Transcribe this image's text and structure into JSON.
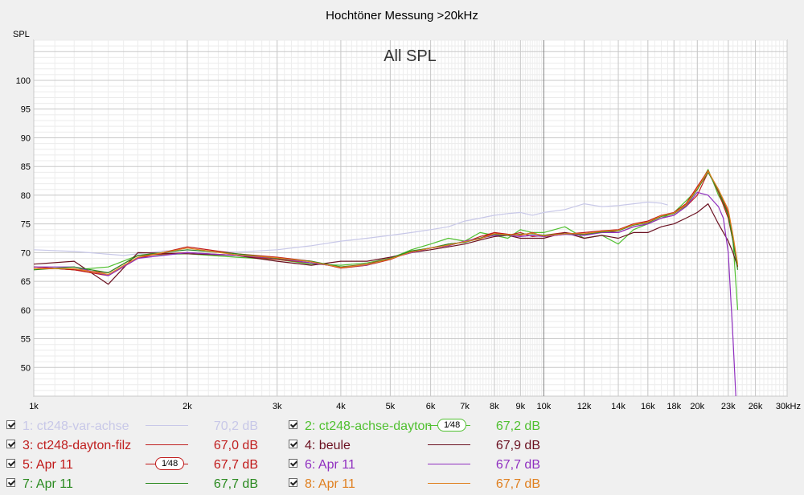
{
  "chart_data": {
    "type": "line",
    "title": "Hochtöner Messung >20kHz",
    "overlay_label": "All SPL",
    "ylabel": "SPL",
    "xlabel": "",
    "x_scale": "log",
    "xlim": [
      1000,
      30000
    ],
    "ylim": [
      45,
      107
    ],
    "y_ticks": [
      50,
      55,
      60,
      65,
      70,
      75,
      80,
      85,
      90,
      95,
      100
    ],
    "x_ticks": [
      {
        "v": 1000,
        "label": "1k"
      },
      {
        "v": 2000,
        "label": "2k"
      },
      {
        "v": 3000,
        "label": "3k"
      },
      {
        "v": 4000,
        "label": "4k"
      },
      {
        "v": 5000,
        "label": "5k"
      },
      {
        "v": 6000,
        "label": "6k"
      },
      {
        "v": 7000,
        "label": "7k"
      },
      {
        "v": 8000,
        "label": "8k"
      },
      {
        "v": 9000,
        "label": "9k"
      },
      {
        "v": 10000,
        "label": "10k"
      },
      {
        "v": 12000,
        "label": "12k"
      },
      {
        "v": 14000,
        "label": "14k"
      },
      {
        "v": 16000,
        "label": "16k"
      },
      {
        "v": 18000,
        "label": "18k"
      },
      {
        "v": 20000,
        "label": "20k"
      },
      {
        "v": 23000,
        "label": "23k"
      },
      {
        "v": 26000,
        "label": "26k"
      },
      {
        "v": 30000,
        "label": "30kHz"
      }
    ],
    "series": [
      {
        "name": "1: ct248-var-achse",
        "color": "#c8c8e8",
        "value_label": "70,2 dB",
        "faded": true,
        "x": [
          1000,
          1200,
          1500,
          1800,
          2000,
          2500,
          3000,
          3500,
          4000,
          4500,
          5000,
          5500,
          6000,
          6500,
          7000,
          7500,
          8000,
          8500,
          9000,
          9500,
          10000,
          11000,
          12000,
          13000,
          14000,
          15000,
          16000,
          17000,
          17500
        ],
        "y": [
          70.5,
          70.2,
          69.5,
          70.3,
          70.4,
          70.1,
          70.5,
          71.2,
          72.0,
          72.5,
          73.0,
          73.5,
          74.0,
          74.5,
          75.5,
          76.0,
          76.5,
          76.8,
          77.0,
          76.5,
          77.0,
          77.5,
          78.5,
          78.0,
          78.2,
          78.5,
          78.8,
          78.6,
          78.3
        ]
      },
      {
        "name": "2: ct248-achse-dayton",
        "color": "#50c030",
        "value_label": "67,2 dB",
        "badge": "1⁄48",
        "x": [
          1000,
          1200,
          1400,
          1600,
          2000,
          2500,
          3000,
          3500,
          4000,
          4500,
          5000,
          5500,
          6000,
          6500,
          7000,
          7500,
          8000,
          8500,
          9000,
          9500,
          10000,
          11000,
          12000,
          13000,
          14000,
          15000,
          16000,
          17000,
          18000,
          19000,
          20000,
          21000,
          22000,
          23000,
          23500,
          24000
        ],
        "y": [
          67.5,
          67.0,
          67.5,
          69.5,
          69.8,
          69.2,
          68.8,
          68.0,
          67.8,
          68.2,
          69.0,
          70.5,
          71.5,
          72.5,
          72.0,
          73.5,
          73.0,
          72.5,
          74.0,
          73.5,
          73.5,
          74.5,
          72.5,
          73.0,
          71.5,
          74.0,
          75.0,
          76.0,
          77.0,
          79.0,
          81.0,
          84.5,
          80.0,
          77.0,
          72.0,
          60.0
        ]
      },
      {
        "name": "3: ct248-dayton-filz",
        "color": "#c02020",
        "value_label": "67,0 dB",
        "x": [
          1000,
          1200,
          1400,
          1600,
          2000,
          2500,
          3000,
          3500,
          4000,
          4500,
          5000,
          5500,
          6000,
          6500,
          7000,
          7500,
          8000,
          8500,
          9000,
          9500,
          10000,
          11000,
          12000,
          13000,
          14000,
          15000,
          16000,
          17000,
          18000,
          19000,
          20000,
          21000,
          22000,
          23000,
          23500,
          24000
        ],
        "y": [
          67.5,
          67.0,
          66.5,
          69.5,
          70.0,
          69.5,
          68.8,
          68.2,
          67.5,
          68.0,
          69.0,
          70.0,
          70.8,
          71.5,
          71.8,
          72.8,
          73.5,
          73.0,
          73.5,
          72.8,
          73.0,
          73.5,
          73.0,
          73.8,
          73.5,
          74.5,
          75.0,
          76.0,
          76.5,
          78.0,
          80.0,
          84.0,
          81.0,
          77.0,
          72.0,
          67.5
        ]
      },
      {
        "name": "4: beule",
        "color": "#6a1020",
        "value_label": "67,9 dB",
        "x": [
          1000,
          1200,
          1400,
          1600,
          2000,
          2500,
          3000,
          3500,
          4000,
          4500,
          5000,
          5500,
          6000,
          6500,
          7000,
          7500,
          8000,
          8500,
          9000,
          9500,
          10000,
          11000,
          12000,
          13000,
          14000,
          15000,
          16000,
          17000,
          18000,
          19000,
          20000,
          21000,
          22000,
          23000,
          23500,
          24000
        ],
        "y": [
          68.0,
          68.5,
          64.5,
          70.0,
          69.8,
          69.5,
          68.5,
          67.8,
          68.5,
          68.5,
          69.2,
          70.0,
          70.5,
          71.0,
          71.5,
          72.2,
          72.8,
          73.0,
          72.5,
          72.5,
          72.5,
          73.5,
          72.5,
          73.0,
          72.5,
          73.5,
          73.5,
          74.5,
          75.0,
          76.0,
          77.0,
          78.5,
          75.0,
          72.0,
          70.0,
          67.5
        ]
      },
      {
        "name": "5: Apr 11",
        "color": "#c01818",
        "value_label": "67,7 dB",
        "badge": "1⁄48",
        "x": [
          1000,
          1200,
          1400,
          1600,
          2000,
          2500,
          3000,
          3500,
          4000,
          4500,
          5000,
          5500,
          6000,
          6500,
          7000,
          7500,
          8000,
          8500,
          9000,
          9500,
          10000,
          11000,
          12000,
          13000,
          14000,
          15000,
          16000,
          17000,
          18000,
          19000,
          20000,
          21000,
          22000,
          23000,
          23500,
          24000
        ],
        "y": [
          67.5,
          67.0,
          66.0,
          69.0,
          71.0,
          69.8,
          69.2,
          68.5,
          67.3,
          67.8,
          68.8,
          70.2,
          70.8,
          71.2,
          72.0,
          72.5,
          73.5,
          73.2,
          73.0,
          73.5,
          72.8,
          73.2,
          73.5,
          73.8,
          74.0,
          75.0,
          75.5,
          76.5,
          77.0,
          78.5,
          81.5,
          84.3,
          80.5,
          76.0,
          72.0,
          67.5
        ]
      },
      {
        "name": "6: Apr 11",
        "color": "#9030c0",
        "value_label": "67,7 dB",
        "x": [
          1000,
          1200,
          1400,
          1600,
          2000,
          2500,
          3000,
          3500,
          4000,
          4500,
          5000,
          5500,
          6000,
          6500,
          7000,
          7500,
          8000,
          8500,
          9000,
          9500,
          10000,
          11000,
          12000,
          13000,
          14000,
          15000,
          16000,
          17000,
          18000,
          19000,
          20000,
          21000,
          22000,
          22500,
          23000,
          23500,
          23800
        ],
        "y": [
          67.5,
          67.5,
          66.0,
          69.0,
          70.0,
          69.5,
          69.0,
          68.2,
          67.5,
          67.8,
          69.0,
          70.0,
          70.8,
          71.2,
          72.0,
          72.5,
          73.0,
          73.0,
          72.8,
          73.0,
          72.8,
          73.2,
          73.0,
          73.5,
          73.5,
          74.5,
          75.0,
          76.0,
          76.5,
          78.0,
          80.5,
          80.0,
          78.0,
          76.0,
          70.0,
          55.0,
          45.0
        ]
      },
      {
        "name": "7: Apr 11",
        "color": "#2a8a20",
        "value_label": "67,7 dB",
        "x": [
          1000,
          1200,
          1400,
          1600,
          2000,
          2500,
          3000,
          3500,
          4000,
          4500,
          5000,
          5500,
          6000,
          6500,
          7000,
          7500,
          8000,
          8500,
          9000,
          9500,
          10000,
          11000,
          12000,
          13000,
          14000,
          15000,
          16000,
          17000,
          18000,
          19000,
          20000,
          21000,
          22000,
          23000,
          23500,
          24000
        ],
        "y": [
          67.0,
          67.5,
          66.5,
          69.5,
          70.5,
          69.8,
          69.0,
          68.5,
          67.5,
          67.9,
          69.0,
          70.3,
          70.8,
          71.5,
          71.8,
          72.5,
          73.2,
          73.0,
          73.2,
          73.3,
          73.0,
          73.3,
          73.2,
          73.6,
          73.8,
          74.8,
          75.2,
          76.3,
          76.8,
          78.2,
          81.0,
          84.0,
          80.8,
          76.5,
          72.0,
          67.0
        ]
      },
      {
        "name": "8: Apr 11",
        "color": "#e08020",
        "value_label": "67,7 dB",
        "x": [
          1000,
          1200,
          1400,
          1600,
          2000,
          2500,
          3000,
          3500,
          4000,
          4500,
          5000,
          5500,
          6000,
          6500,
          7000,
          7500,
          8000,
          8500,
          9000,
          9500,
          10000,
          11000,
          12000,
          13000,
          14000,
          15000,
          16000,
          17000,
          18000,
          19000,
          20000,
          21000,
          22000,
          23000,
          23500,
          24000
        ],
        "y": [
          67.2,
          67.2,
          66.2,
          69.2,
          70.8,
          69.6,
          69.1,
          68.4,
          67.4,
          67.9,
          68.9,
          70.1,
          70.8,
          71.3,
          71.9,
          72.4,
          73.3,
          73.1,
          73.1,
          73.4,
          72.9,
          73.3,
          73.3,
          73.7,
          73.9,
          74.9,
          75.3,
          76.4,
          76.9,
          78.3,
          81.2,
          84.2,
          81.0,
          77.5,
          73.0,
          68.0
        ]
      }
    ]
  }
}
